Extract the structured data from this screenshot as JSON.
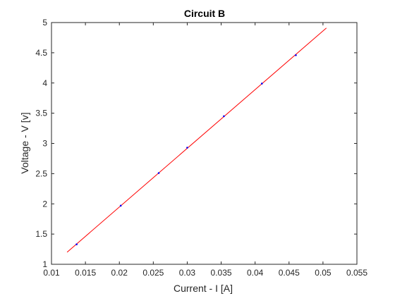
{
  "chart_data": {
    "type": "line",
    "title": "Circuit B",
    "xlabel": "Current - I [A]",
    "ylabel": "Voltage - V [v]",
    "xlim": [
      0.01,
      0.055
    ],
    "ylim": [
      1,
      5
    ],
    "x_ticks": [
      0.01,
      0.015,
      0.02,
      0.025,
      0.03,
      0.035,
      0.04,
      0.045,
      0.05,
      0.055
    ],
    "x_tick_labels": [
      "0.01",
      "0.015",
      "0.02",
      "0.025",
      "0.03",
      "0.035",
      "0.04",
      "0.045",
      "0.05",
      "0.055"
    ],
    "y_ticks": [
      1,
      1.5,
      2,
      2.5,
      3,
      3.5,
      4,
      4.5,
      5
    ],
    "y_tick_labels": [
      "1",
      "1.5",
      "2",
      "2.5",
      "3",
      "3.5",
      "4",
      "4.5",
      "5"
    ],
    "grid": false,
    "series": [
      {
        "kind": "scatter",
        "color": "#0000ff",
        "x": [
          0.0137,
          0.0202,
          0.0258,
          0.03,
          0.0354,
          0.041,
          0.046
        ],
        "y": [
          1.33,
          1.97,
          2.51,
          2.93,
          3.45,
          3.99,
          4.46
        ]
      },
      {
        "kind": "line",
        "color": "#ff0000",
        "x": [
          0.0123,
          0.0505
        ],
        "y": [
          1.2,
          4.91
        ]
      }
    ]
  }
}
